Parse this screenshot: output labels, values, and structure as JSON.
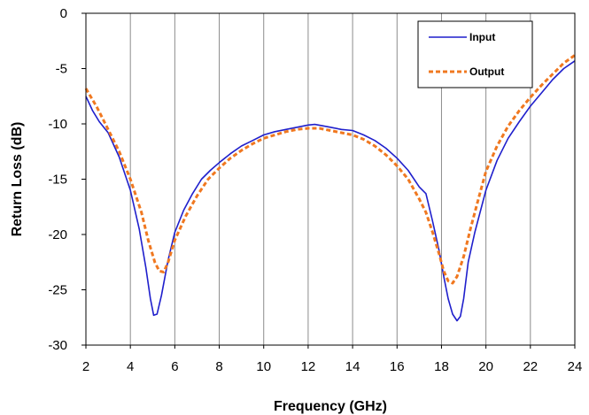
{
  "chart_data": {
    "type": "line",
    "xlabel": "Frequency (GHz)",
    "ylabel": "Return Loss (dB)",
    "xlim": [
      2,
      24
    ],
    "ylim": [
      -30,
      0
    ],
    "x_ticks": [
      "2",
      "4",
      "6",
      "8",
      "10",
      "12",
      "14",
      "16",
      "18",
      "20",
      "22",
      "24"
    ],
    "y_ticks": [
      "0",
      "-5",
      "-10",
      "-15",
      "-20",
      "-25",
      "-30"
    ],
    "grid": "vertical",
    "legend_position": "top-right",
    "series": [
      {
        "name": "Input",
        "color": "#1f1fcc",
        "style": "solid",
        "x": [
          2,
          2.3,
          2.6,
          3,
          3.5,
          4,
          4.4,
          4.7,
          4.9,
          5.05,
          5.2,
          5.4,
          5.7,
          6,
          6.4,
          6.8,
          7.2,
          7.6,
          8,
          8.5,
          9,
          9.5,
          10,
          10.5,
          11,
          11.5,
          12,
          12.3,
          12.6,
          13,
          13.5,
          14,
          14.5,
          15,
          15.5,
          16,
          16.5,
          17,
          17.3,
          17.6,
          17.9,
          18.1,
          18.3,
          18.5,
          18.7,
          18.85,
          19,
          19.2,
          19.5,
          20,
          20.5,
          21,
          21.5,
          22,
          22.5,
          23,
          23.5,
          24
        ],
        "y": [
          -7.5,
          -8.8,
          -9.8,
          -10.8,
          -13,
          -16,
          -19.5,
          -23,
          -25.8,
          -27.3,
          -27.2,
          -25.5,
          -22.3,
          -19.8,
          -17.8,
          -16.3,
          -15,
          -14.2,
          -13.5,
          -12.7,
          -12,
          -11.5,
          -11,
          -10.7,
          -10.5,
          -10.3,
          -10.1,
          -10.05,
          -10.15,
          -10.3,
          -10.5,
          -10.6,
          -11,
          -11.5,
          -12.2,
          -13.1,
          -14.2,
          -15.7,
          -16.3,
          -18.8,
          -21.5,
          -23.8,
          -25.8,
          -27.2,
          -27.8,
          -27.4,
          -25.8,
          -22.5,
          -19.8,
          -16,
          -13.3,
          -11.3,
          -9.8,
          -8.4,
          -7.2,
          -6,
          -5,
          -4.3
        ]
      },
      {
        "name": "Output",
        "color": "#f07820",
        "style": "dashed",
        "x": [
          2,
          2.5,
          3,
          3.5,
          4,
          4.5,
          4.8,
          5.1,
          5.3,
          5.5,
          5.7,
          6,
          6.5,
          7,
          7.5,
          8,
          8.5,
          9,
          9.5,
          10,
          10.5,
          11,
          11.5,
          12,
          12.5,
          13,
          13.5,
          14,
          14.5,
          15,
          15.5,
          16,
          16.5,
          17,
          17.3,
          17.6,
          17.9,
          18.1,
          18.3,
          18.5,
          18.7,
          19,
          19.3,
          19.7,
          20,
          20.5,
          21,
          21.5,
          22,
          22.5,
          23,
          23.5,
          24
        ],
        "y": [
          -6.8,
          -8.5,
          -10.5,
          -12.5,
          -15,
          -18,
          -20.5,
          -22.5,
          -23.3,
          -23.4,
          -22.5,
          -20.5,
          -18.3,
          -16.5,
          -15,
          -14,
          -13.1,
          -12.4,
          -11.8,
          -11.3,
          -11,
          -10.7,
          -10.5,
          -10.4,
          -10.4,
          -10.6,
          -10.8,
          -11,
          -11.4,
          -12,
          -12.8,
          -13.8,
          -15,
          -16.8,
          -18,
          -19.8,
          -21.8,
          -23.3,
          -24.2,
          -24.4,
          -23.8,
          -22,
          -19.5,
          -16.5,
          -14.3,
          -12,
          -10.2,
          -8.8,
          -7.6,
          -6.5,
          -5.5,
          -4.5,
          -3.8
        ]
      }
    ]
  }
}
